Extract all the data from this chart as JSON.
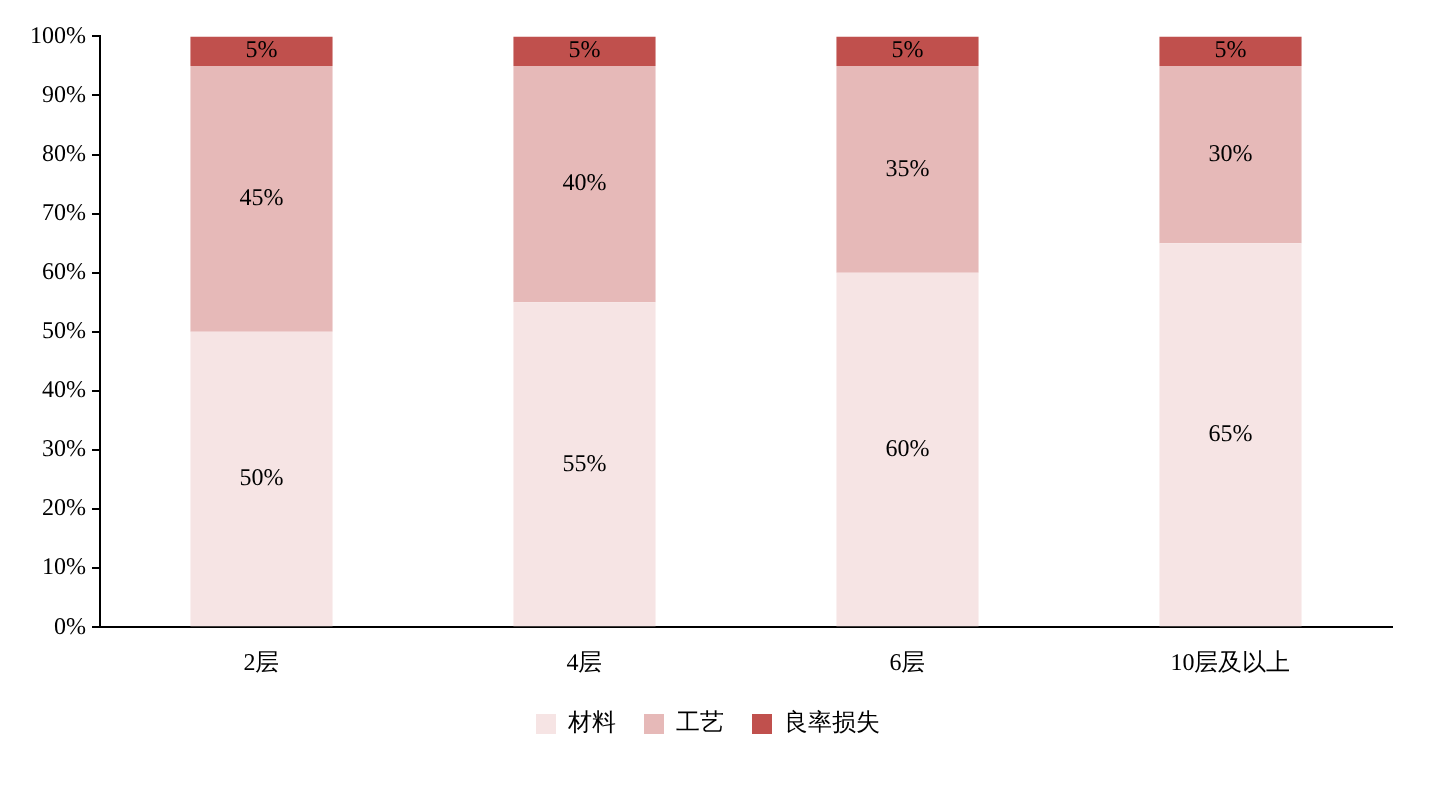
{
  "chart_data": {
    "type": "bar",
    "stacked": true,
    "categories": [
      "2层",
      "4层",
      "6层",
      "10层及以上"
    ],
    "series": [
      {
        "name": "材料",
        "color": "#f6e4e4",
        "values": [
          50,
          55,
          60,
          65
        ],
        "value_labels": [
          "50%",
          "55%",
          "60%",
          "65%"
        ]
      },
      {
        "name": "工艺",
        "color": "#e6b9b8",
        "values": [
          45,
          40,
          35,
          30
        ],
        "value_labels": [
          "45%",
          "40%",
          "35%",
          "30%"
        ]
      },
      {
        "name": "良率损失",
        "color": "#c0504d",
        "values": [
          5,
          5,
          5,
          5
        ],
        "value_labels": [
          "5%",
          "5%",
          "5%",
          "5%"
        ]
      }
    ],
    "ylim": [
      0,
      100
    ],
    "yticks": [
      {
        "value": 0,
        "label": "0%"
      },
      {
        "value": 10,
        "label": "10%"
      },
      {
        "value": 20,
        "label": "20%"
      },
      {
        "value": 30,
        "label": "30%"
      },
      {
        "value": 40,
        "label": "40%"
      },
      {
        "value": 50,
        "label": "50%"
      },
      {
        "value": 60,
        "label": "60%"
      },
      {
        "value": 70,
        "label": "70%"
      },
      {
        "value": 80,
        "label": "80%"
      },
      {
        "value": 90,
        "label": "90%"
      },
      {
        "value": 100,
        "label": "100%"
      }
    ],
    "grid": false,
    "legend": "bottom"
  }
}
